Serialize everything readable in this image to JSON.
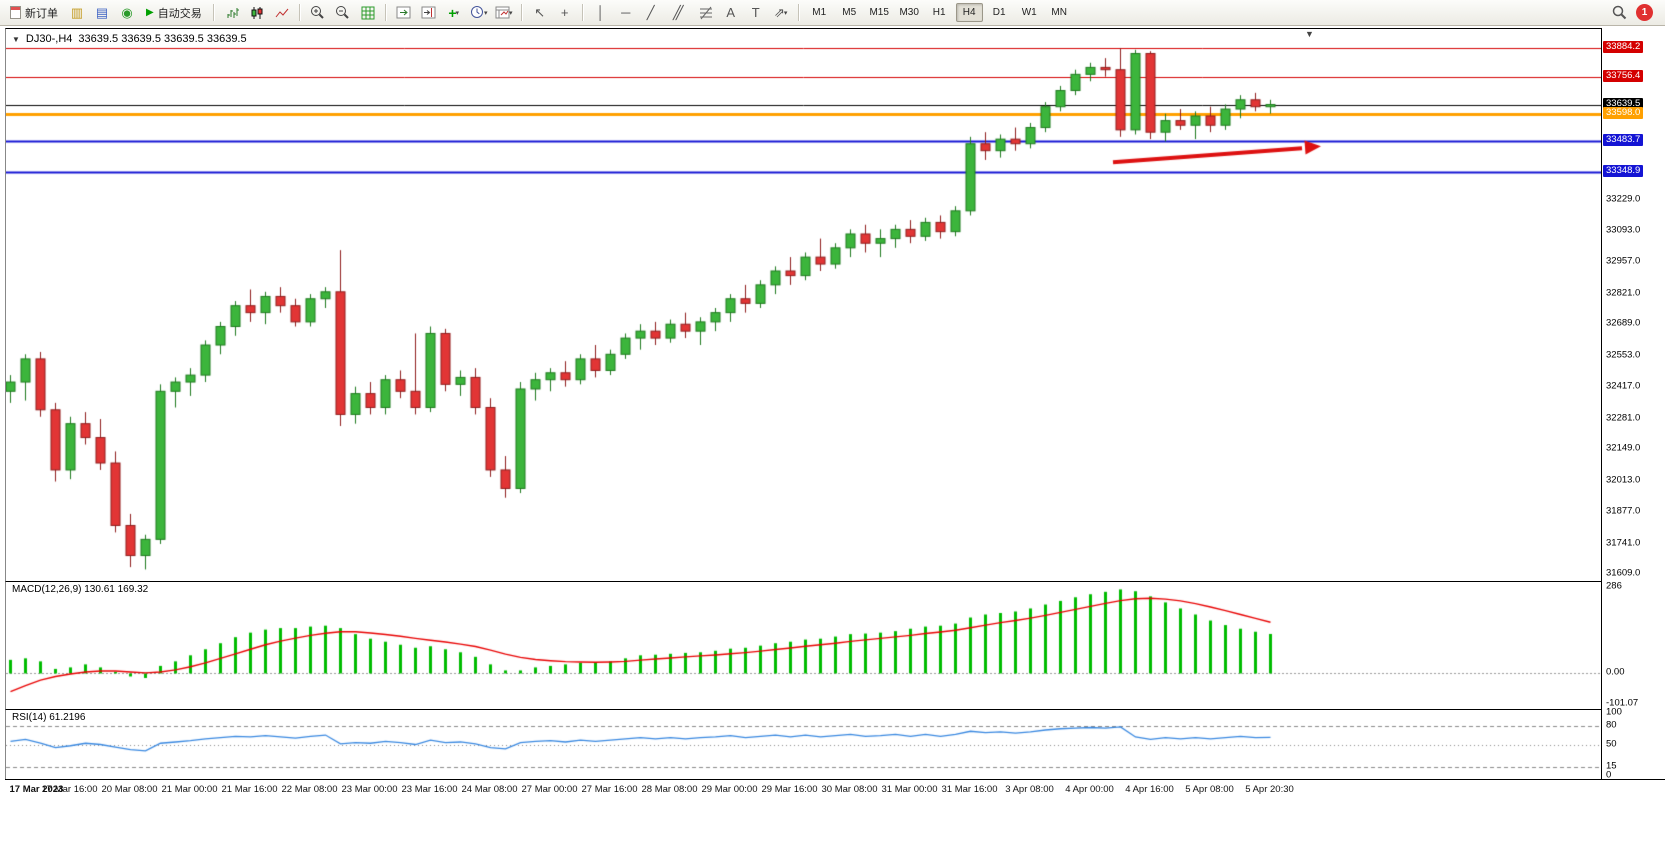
{
  "toolbar": {
    "new_order_label": "新订单",
    "auto_trading_label": "自动交易",
    "timeframes": [
      "M1",
      "M5",
      "M15",
      "M30",
      "H1",
      "H4",
      "D1",
      "W1",
      "MN"
    ],
    "active_timeframe": "H4",
    "notification_count": "1"
  },
  "icons": {
    "charts_window": "▥",
    "market_watch": "▤",
    "navigator": "◉",
    "play": "▶",
    "indicators_add": "+",
    "dropdown": "▾",
    "cursor": "↖",
    "crosshair": "+",
    "vline": "│",
    "hline": "─",
    "trendline": "╱",
    "channel": "╱╱",
    "text": "A",
    "text_label": "T",
    "shapes": "⇗",
    "symbol_dropdown": "▼",
    "shift_marker": "▼"
  },
  "chart": {
    "symbol": "DJ30-,H4",
    "ohlc": "33639.5 33639.5 33639.5 33639.5"
  },
  "chart_data": [
    {
      "type": "candlestick",
      "symbol": "DJ30-",
      "timeframe": "H4",
      "ylim": [
        31580,
        33966
      ],
      "up_color": "#3CB53C",
      "up_border": "#1E7A1E",
      "down_color": "#E23535",
      "down_border": "#8F1D1D",
      "price_axis_ticks": [
        "33229.0",
        "33093.0",
        "32957.0",
        "32821.0",
        "32689.0",
        "32553.0",
        "32417.0",
        "32281.0",
        "32149.0",
        "32013.0",
        "31877.0",
        "31741.0",
        "31609.0"
      ],
      "level_lines": [
        {
          "label": "33884.2",
          "price": 33884.2,
          "color": "#D40000",
          "width": 1,
          "name": "resistance-line-33884-label"
        },
        {
          "label": "33756.4",
          "price": 33756.4,
          "color": "#D40000",
          "width": 1,
          "name": "resistance-line-33756-label"
        },
        {
          "label": "33639.5",
          "price": 33639.5,
          "color": "#000000",
          "width": 1,
          "name": "current-price-label"
        },
        {
          "label": "33598.0",
          "price": 33598.0,
          "color": "#FFA000",
          "width": 3,
          "name": "orange-level-label"
        },
        {
          "label": "33483.7",
          "price": 33483.7,
          "color": "#1414D4",
          "width": 2,
          "name": "support-line-33483-label"
        },
        {
          "label": "33348.9",
          "price": 33348.9,
          "color": "#1414D4",
          "width": 2,
          "name": "support-line-33348-label"
        }
      ],
      "time_labels": [
        "17 Mar 2023",
        "17 Mar 16:00",
        "20 Mar 08:00",
        "21 Mar 00:00",
        "21 Mar 16:00",
        "22 Mar 08:00",
        "23 Mar 00:00",
        "23 Mar 16:00",
        "24 Mar 08:00",
        "27 Mar 00:00",
        "27 Mar 16:00",
        "28 Mar 08:00",
        "29 Mar 00:00",
        "29 Mar 16:00",
        "30 Mar 08:00",
        "31 Mar 00:00",
        "31 Mar 16:00",
        "3 Apr 08:00",
        "4 Apr 00:00",
        "4 Apr 16:00",
        "5 Apr 08:00",
        "5 Apr 20:30"
      ],
      "candles": [
        [
          32400,
          32470,
          32350,
          32440
        ],
        [
          32440,
          32560,
          32360,
          32540
        ],
        [
          32540,
          32570,
          32290,
          32320
        ],
        [
          32320,
          32350,
          32010,
          32060
        ],
        [
          32060,
          32290,
          32020,
          32260
        ],
        [
          32260,
          32310,
          32170,
          32200
        ],
        [
          32200,
          32280,
          32060,
          32090
        ],
        [
          32090,
          32140,
          31790,
          31820
        ],
        [
          31820,
          31870,
          31640,
          31690
        ],
        [
          31690,
          31780,
          31630,
          31760
        ],
        [
          31760,
          32430,
          31740,
          32400
        ],
        [
          32400,
          32460,
          32330,
          32440
        ],
        [
          32440,
          32500,
          32380,
          32470
        ],
        [
          32470,
          32620,
          32440,
          32600
        ],
        [
          32600,
          32700,
          32560,
          32680
        ],
        [
          32680,
          32790,
          32640,
          32770
        ],
        [
          32770,
          32840,
          32700,
          32740
        ],
        [
          32740,
          32830,
          32690,
          32810
        ],
        [
          32810,
          32850,
          32740,
          32770
        ],
        [
          32770,
          32800,
          32680,
          32700
        ],
        [
          32700,
          32820,
          32680,
          32800
        ],
        [
          32800,
          32850,
          32760,
          32830
        ],
        [
          32830,
          33010,
          32250,
          32300
        ],
        [
          32300,
          32420,
          32260,
          32390
        ],
        [
          32390,
          32440,
          32300,
          32330
        ],
        [
          32330,
          32470,
          32300,
          32450
        ],
        [
          32450,
          32490,
          32370,
          32400
        ],
        [
          32400,
          32650,
          32300,
          32330
        ],
        [
          32330,
          32680,
          32310,
          32650
        ],
        [
          32650,
          32670,
          32400,
          32430
        ],
        [
          32430,
          32490,
          32380,
          32460
        ],
        [
          32460,
          32500,
          32300,
          32330
        ],
        [
          32330,
          32370,
          32030,
          32060
        ],
        [
          32060,
          32120,
          31940,
          31980
        ],
        [
          31980,
          32440,
          31960,
          32410
        ],
        [
          32410,
          32480,
          32360,
          32450
        ],
        [
          32450,
          32500,
          32400,
          32480
        ],
        [
          32480,
          32530,
          32420,
          32450
        ],
        [
          32450,
          32560,
          32430,
          32540
        ],
        [
          32540,
          32600,
          32460,
          32490
        ],
        [
          32490,
          32580,
          32470,
          32560
        ],
        [
          32560,
          32650,
          32540,
          32630
        ],
        [
          32630,
          32690,
          32580,
          32660
        ],
        [
          32660,
          32700,
          32600,
          32630
        ],
        [
          32630,
          32710,
          32610,
          32690
        ],
        [
          32690,
          32740,
          32630,
          32660
        ],
        [
          32660,
          32720,
          32600,
          32700
        ],
        [
          32700,
          32760,
          32660,
          32740
        ],
        [
          32740,
          32820,
          32700,
          32800
        ],
        [
          32800,
          32860,
          32740,
          32780
        ],
        [
          32780,
          32880,
          32760,
          32860
        ],
        [
          32860,
          32940,
          32820,
          32920
        ],
        [
          32920,
          32980,
          32860,
          32900
        ],
        [
          32900,
          33000,
          32880,
          32980
        ],
        [
          32980,
          33060,
          32920,
          32950
        ],
        [
          32950,
          33040,
          32930,
          33020
        ],
        [
          33020,
          33100,
          32980,
          33080
        ],
        [
          33080,
          33120,
          33000,
          33040
        ],
        [
          33040,
          33100,
          32980,
          33060
        ],
        [
          33060,
          33120,
          33020,
          33100
        ],
        [
          33100,
          33140,
          33040,
          33070
        ],
        [
          33070,
          33150,
          33050,
          33130
        ],
        [
          33130,
          33160,
          33060,
          33090
        ],
        [
          33090,
          33200,
          33070,
          33180
        ],
        [
          33180,
          33500,
          33160,
          33470
        ],
        [
          33470,
          33520,
          33400,
          33440
        ],
        [
          33440,
          33510,
          33410,
          33490
        ],
        [
          33490,
          33540,
          33440,
          33470
        ],
        [
          33470,
          33560,
          33450,
          33540
        ],
        [
          33540,
          33650,
          33520,
          33630
        ],
        [
          33630,
          33720,
          33610,
          33700
        ],
        [
          33700,
          33790,
          33680,
          33770
        ],
        [
          33770,
          33820,
          33740,
          33800
        ],
        [
          33800,
          33840,
          33760,
          33790
        ],
        [
          33790,
          33884,
          33500,
          33530
        ],
        [
          33530,
          33876,
          33510,
          33860
        ],
        [
          33860,
          33870,
          33490,
          33520
        ],
        [
          33520,
          33600,
          33480,
          33570
        ],
        [
          33570,
          33620,
          33530,
          33550
        ],
        [
          33550,
          33610,
          33490,
          33590
        ],
        [
          33590,
          33630,
          33520,
          33550
        ],
        [
          33550,
          33640,
          33530,
          33620
        ],
        [
          33620,
          33680,
          33580,
          33660
        ],
        [
          33660,
          33690,
          33610,
          33630
        ],
        [
          33630,
          33660,
          33600,
          33639.5
        ]
      ],
      "annotation_arrow": {
        "from_bar": 73.5,
        "from_price": 33390,
        "to_bar": 86.5,
        "to_price": 33455,
        "color": "#DD1111"
      }
    },
    {
      "type": "macd",
      "label": "MACD(12,26,9) 130.61 169.32",
      "ylim": [
        -101.07,
        286
      ],
      "histogram_color": "#00BB00",
      "signal_color": "#E80000",
      "axis_ticks": [
        {
          "label": "286",
          "value": 286
        },
        {
          "label": "0.00",
          "value": 0
        },
        {
          "label": "-101.07",
          "value": -101.07
        }
      ],
      "values": [
        45,
        50,
        40,
        15,
        20,
        30,
        20,
        5,
        -10,
        -15,
        25,
        40,
        60,
        80,
        100,
        120,
        135,
        145,
        150,
        150,
        155,
        158,
        150,
        130,
        115,
        105,
        95,
        85,
        90,
        80,
        70,
        55,
        30,
        10,
        10,
        20,
        25,
        30,
        35,
        35,
        40,
        50,
        60,
        62,
        65,
        68,
        70,
        75,
        82,
        85,
        92,
        100,
        105,
        112,
        115,
        122,
        130,
        132,
        135,
        140,
        148,
        155,
        158,
        165,
        185,
        195,
        200,
        205,
        215,
        228,
        240,
        252,
        262,
        270,
        278,
        272,
        255,
        235,
        215,
        195,
        175,
        160,
        148,
        138,
        130.61
      ],
      "signal": [
        -60,
        -40,
        -22,
        -10,
        -2,
        5,
        8,
        8,
        5,
        2,
        5,
        12,
        22,
        35,
        50,
        65,
        80,
        95,
        107,
        117,
        126,
        133,
        138,
        138,
        134,
        129,
        123,
        116,
        110,
        104,
        97,
        89,
        77,
        64,
        53,
        46,
        42,
        39,
        38,
        37,
        38,
        40,
        44,
        48,
        51,
        55,
        58,
        61,
        65,
        69,
        74,
        79,
        84,
        90,
        95,
        100,
        106,
        111,
        116,
        121,
        126,
        132,
        137,
        143,
        151,
        160,
        168,
        175,
        183,
        192,
        202,
        212,
        222,
        232,
        241,
        247,
        249,
        246,
        240,
        231,
        220,
        208,
        195,
        182,
        169.32
      ]
    },
    {
      "type": "rsi",
      "label": "RSI(14) 61.2196",
      "ylim": [
        0,
        100
      ],
      "line_color": "#3787E0",
      "axis_ticks": [
        {
          "label": "100",
          "value": 100
        },
        {
          "label": "80",
          "value": 80
        },
        {
          "label": "50",
          "value": 50
        },
        {
          "label": "15",
          "value": 15
        },
        {
          "label": "0",
          "value": 0
        }
      ],
      "levels": [
        80,
        50,
        15
      ],
      "values": [
        55,
        58,
        52,
        45,
        48,
        52,
        50,
        46,
        42,
        40,
        52,
        54,
        56,
        59,
        61,
        63,
        62,
        64,
        62,
        60,
        63,
        65,
        51,
        53,
        52,
        55,
        53,
        50,
        57,
        53,
        54,
        51,
        45,
        43,
        53,
        55,
        56,
        54,
        57,
        55,
        57,
        59,
        61,
        59,
        61,
        59,
        61,
        62,
        64,
        61,
        63,
        65,
        62,
        65,
        62,
        64,
        66,
        63,
        64,
        66,
        63,
        66,
        63,
        66,
        71,
        69,
        70,
        68,
        70,
        73,
        75,
        76,
        77,
        76,
        78,
        62,
        58,
        61,
        59,
        61,
        59,
        61,
        63,
        61,
        61.22
      ]
    }
  ]
}
